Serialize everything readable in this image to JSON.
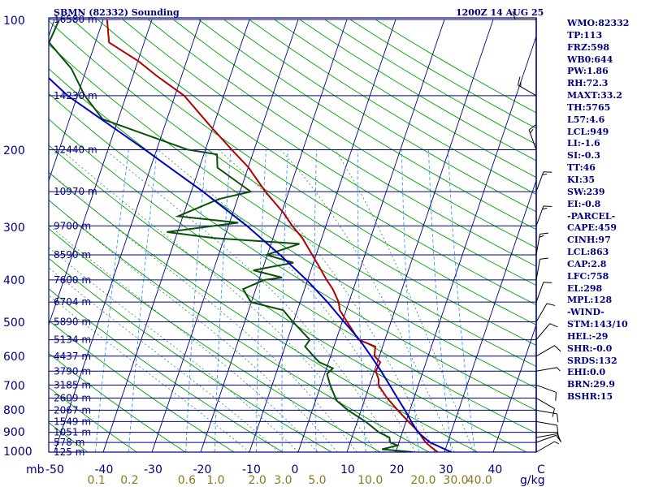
{
  "header": {
    "station": "SBMN (82332) Sounding",
    "time": "1200Z 14 AUG 25"
  },
  "pressure_labels": [
    "100",
    "200",
    "300",
    "400",
    "500",
    "600",
    "700",
    "800",
    "900",
    "1000"
  ],
  "height_labels": [
    {
      "p": 100,
      "text": "16580 m"
    },
    {
      "p": 150,
      "text": "14230 m"
    },
    {
      "p": 200,
      "text": "12440 m"
    },
    {
      "p": 250,
      "text": "10970 m"
    },
    {
      "p": 300,
      "text": "9700 m"
    },
    {
      "p": 350,
      "text": "8590 m"
    },
    {
      "p": 400,
      "text": "7600 m"
    },
    {
      "p": 450,
      "text": "6704 m"
    },
    {
      "p": 500,
      "text": "5890 m"
    },
    {
      "p": 550,
      "text": "5134 m"
    },
    {
      "p": 600,
      "text": "4437 m"
    },
    {
      "p": 650,
      "text": "3790 m"
    },
    {
      "p": 700,
      "text": "3185 m"
    },
    {
      "p": 750,
      "text": "2609 m"
    },
    {
      "p": 800,
      "text": "2067 m"
    },
    {
      "p": 850,
      "text": "1549 m"
    },
    {
      "p": 900,
      "text": "1051 m"
    },
    {
      "p": 950,
      "text": "578 m"
    },
    {
      "p": 1000,
      "text": "125 m"
    }
  ],
  "temp_axis": {
    "unit_label": "mb",
    "ticks": [
      "-50",
      "-40",
      "-30",
      "-20",
      "-10",
      "0",
      "10",
      "20",
      "30",
      "40",
      "C"
    ]
  },
  "mixing_axis": {
    "ticks": [
      "0.1",
      "0.2",
      "0.6",
      "1.0",
      "2.0",
      "3.0",
      "5.0",
      "10.0",
      "20.0",
      "30.0",
      "40.0"
    ],
    "unit": "g/kg"
  },
  "indices": [
    {
      "key": "WMO",
      "value": "82332"
    },
    {
      "key": "TP",
      "value": "113"
    },
    {
      "key": "FRZ",
      "value": "598"
    },
    {
      "key": "WB0",
      "value": "644"
    },
    {
      "key": "PW",
      "value": "1.86"
    },
    {
      "key": "RH",
      "value": "72.3"
    },
    {
      "key": "MAXT",
      "value": "33.2"
    },
    {
      "key": "TH",
      "value": "5765"
    },
    {
      "key": "L57",
      "value": "4.6"
    },
    {
      "key": "LCL",
      "value": "949"
    },
    {
      "key": "LI",
      "value": "-1.6"
    },
    {
      "key": "SI",
      "value": "-0.3"
    },
    {
      "key": "TT",
      "value": "46"
    },
    {
      "key": "KI",
      "value": "35"
    },
    {
      "key": "SW",
      "value": "239"
    },
    {
      "key": "EI",
      "value": "-0.8"
    },
    {
      "key": "-PARCEL-",
      "value": ""
    },
    {
      "key": "CAPE",
      "value": "459"
    },
    {
      "key": "CINH",
      "value": "97"
    },
    {
      "key": "LCL",
      "value": "863"
    },
    {
      "key": "CAP",
      "value": "2.8"
    },
    {
      "key": "LFC",
      "value": "758"
    },
    {
      "key": "EL",
      "value": "298"
    },
    {
      "key": "MPL",
      "value": "128"
    },
    {
      "key": "-WIND-",
      "value": ""
    },
    {
      "key": "STM",
      "value": "143/10"
    },
    {
      "key": "HEL",
      "value": "-29"
    },
    {
      "key": "SHR",
      "value": "-0.0"
    },
    {
      "key": "SRDS",
      "value": "132"
    },
    {
      "key": "EHI",
      "value": "0.0"
    },
    {
      "key": "BRN",
      "value": "29.9"
    },
    {
      "key": "BSHR",
      "value": "15"
    }
  ],
  "colors": {
    "frame": "#000080",
    "isobar": "#000080",
    "isotherm": "#000080",
    "dry_adiabat": "#00a000",
    "moist_adiabat": "#2e8b57",
    "mixing_ratio": "#1e90ff",
    "temperature": "#b00000",
    "dewpoint": "#0a4f0a",
    "parcel": "#0000c0",
    "wind": "#000000"
  },
  "chart_data": {
    "type": "skew-t log-p sounding",
    "pressure_range_hpa": [
      1000,
      100
    ],
    "temperature_range_c": [
      -50,
      50
    ],
    "series": [
      {
        "name": "temperature",
        "points": [
          {
            "p": 1000,
            "t": 28.6
          },
          {
            "p": 975,
            "t": 27.0
          },
          {
            "p": 950,
            "t": 25.5
          },
          {
            "p": 925,
            "t": 24.4
          },
          {
            "p": 900,
            "t": 23.4
          },
          {
            "p": 850,
            "t": 20.5
          },
          {
            "p": 800,
            "t": 17.5
          },
          {
            "p": 750,
            "t": 14.5
          },
          {
            "p": 700,
            "t": 11.8
          },
          {
            "p": 680,
            "t": 11.5
          },
          {
            "p": 650,
            "t": 10.3
          },
          {
            "p": 620,
            "t": 10.6
          },
          {
            "p": 600,
            "t": 9.0
          },
          {
            "p": 570,
            "t": 8.5
          },
          {
            "p": 550,
            "t": 4.6
          },
          {
            "p": 500,
            "t": 1.0
          },
          {
            "p": 470,
            "t": -1.3
          },
          {
            "p": 450,
            "t": -2.1
          },
          {
            "p": 420,
            "t": -4.2
          },
          {
            "p": 400,
            "t": -6.1
          },
          {
            "p": 370,
            "t": -8.8
          },
          {
            "p": 350,
            "t": -10.8
          },
          {
            "p": 320,
            "t": -14.0
          },
          {
            "p": 300,
            "t": -16.9
          },
          {
            "p": 280,
            "t": -19.6
          },
          {
            "p": 250,
            "t": -24.8
          },
          {
            "p": 220,
            "t": -29.9
          },
          {
            "p": 200,
            "t": -34.6
          },
          {
            "p": 175,
            "t": -41.0
          },
          {
            "p": 150,
            "t": -48.1
          },
          {
            "p": 135,
            "t": -55.1
          },
          {
            "p": 125,
            "t": -59.8
          },
          {
            "p": 113,
            "t": -67.2
          },
          {
            "p": 100,
            "t": -69.2
          }
        ]
      },
      {
        "name": "dewpoint",
        "points": [
          {
            "p": 1000,
            "t": 23.6
          },
          {
            "p": 985,
            "t": 17.0
          },
          {
            "p": 965,
            "t": 19.9
          },
          {
            "p": 950,
            "t": 18.2
          },
          {
            "p": 925,
            "t": 17.7
          },
          {
            "p": 900,
            "t": 15.2
          },
          {
            "p": 850,
            "t": 11.7
          },
          {
            "p": 800,
            "t": 7.3
          },
          {
            "p": 760,
            "t": 4.3
          },
          {
            "p": 700,
            "t": 1.9
          },
          {
            "p": 660,
            "t": 0.5
          },
          {
            "p": 640,
            "t": 1.3
          },
          {
            "p": 620,
            "t": -1.9
          },
          {
            "p": 600,
            "t": -3.5
          },
          {
            "p": 570,
            "t": -5.9
          },
          {
            "p": 550,
            "t": -5.4
          },
          {
            "p": 500,
            "t": -10.1
          },
          {
            "p": 470,
            "t": -12.9
          },
          {
            "p": 450,
            "t": -20.1
          },
          {
            "p": 420,
            "t": -22.6
          },
          {
            "p": 400,
            "t": -18.9
          },
          {
            "p": 395,
            "t": -15.4
          },
          {
            "p": 380,
            "t": -21.8
          },
          {
            "p": 365,
            "t": -14.1
          },
          {
            "p": 350,
            "t": -20.2
          },
          {
            "p": 330,
            "t": -14.2
          },
          {
            "p": 320,
            "t": -32.2
          },
          {
            "p": 310,
            "t": -42.2
          },
          {
            "p": 295,
            "t": -28.2
          },
          {
            "p": 285,
            "t": -41.0
          },
          {
            "p": 260,
            "t": -33.8
          },
          {
            "p": 250,
            "t": -27.8
          },
          {
            "p": 220,
            "t": -36.3
          },
          {
            "p": 205,
            "t": -37.3
          },
          {
            "p": 200,
            "t": -43.6
          },
          {
            "p": 170,
            "t": -63.2
          },
          {
            "p": 150,
            "t": -68.5
          },
          {
            "p": 130,
            "t": -73.1
          },
          {
            "p": 113,
            "t": -79.5
          },
          {
            "p": 100,
            "t": -79.0
          }
        ]
      },
      {
        "name": "parcel",
        "points": [
          {
            "p": 1000,
            "t": 31.4
          },
          {
            "p": 949,
            "t": 26.3
          },
          {
            "p": 900,
            "t": 23.2
          },
          {
            "p": 850,
            "t": 21.1
          },
          {
            "p": 800,
            "t": 19.0
          },
          {
            "p": 750,
            "t": 16.6
          },
          {
            "p": 700,
            "t": 14.1
          },
          {
            "p": 650,
            "t": 11.4
          },
          {
            "p": 600,
            "t": 8.3
          },
          {
            "p": 550,
            "t": 4.8
          },
          {
            "p": 500,
            "t": 0.4
          },
          {
            "p": 450,
            "t": -4.4
          },
          {
            "p": 400,
            "t": -10.2
          },
          {
            "p": 350,
            "t": -17.4
          },
          {
            "p": 300,
            "t": -26.2
          },
          {
            "p": 250,
            "t": -37.6
          },
          {
            "p": 200,
            "t": -52.4
          },
          {
            "p": 150,
            "t": -72.0
          },
          {
            "p": 100,
            "t": -94.0
          }
        ]
      }
    ],
    "winds": [
      {
        "p": 1000,
        "dir": 60,
        "spd": 5
      },
      {
        "p": 950,
        "dir": 70,
        "spd": 10
      },
      {
        "p": 925,
        "dir": 80,
        "spd": 10
      },
      {
        "p": 900,
        "dir": 90,
        "spd": 10
      },
      {
        "p": 850,
        "dir": 100,
        "spd": 10
      },
      {
        "p": 800,
        "dir": 100,
        "spd": 10
      },
      {
        "p": 750,
        "dir": 120,
        "spd": 10
      },
      {
        "p": 700,
        "dir": 110,
        "spd": 10
      },
      {
        "p": 650,
        "dir": 80,
        "spd": 5
      },
      {
        "p": 600,
        "dir": 60,
        "spd": 10
      },
      {
        "p": 550,
        "dir": 40,
        "spd": 10
      },
      {
        "p": 500,
        "dir": 30,
        "spd": 10
      },
      {
        "p": 450,
        "dir": 20,
        "spd": 10
      },
      {
        "p": 400,
        "dir": 10,
        "spd": 10
      },
      {
        "p": 350,
        "dir": 10,
        "spd": 15
      },
      {
        "p": 300,
        "dir": 20,
        "spd": 15
      },
      {
        "p": 250,
        "dir": 20,
        "spd": 15
      },
      {
        "p": 200,
        "dir": 340,
        "spd": 15
      },
      {
        "p": 150,
        "dir": 300,
        "spd": 15
      },
      {
        "p": 100,
        "dir": 270,
        "spd": 10
      }
    ]
  }
}
